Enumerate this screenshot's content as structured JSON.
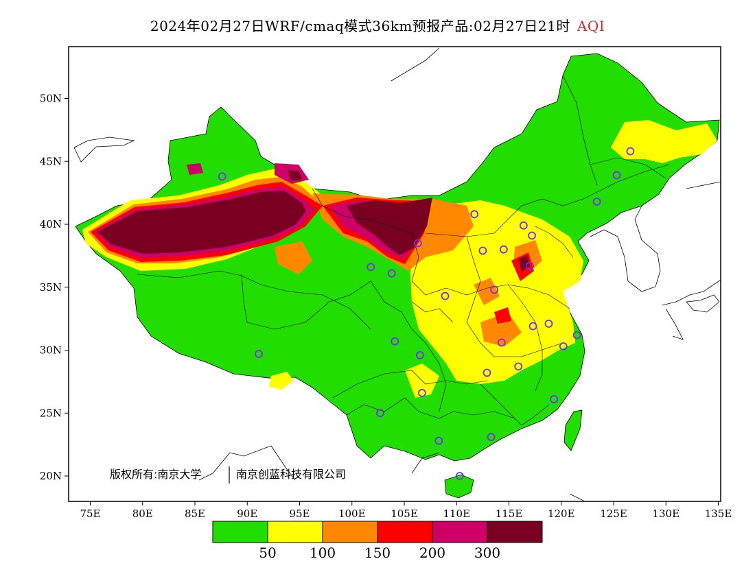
{
  "title": {
    "main": "2024年02月27日WRF/cmaq模式36km预报产品:02月27日21时",
    "variable": "AQI",
    "variable_color": "#d42a2a"
  },
  "axes": {
    "x_ticks": [
      "75E",
      "80E",
      "85E",
      "90E",
      "95E",
      "100E",
      "105E",
      "110E",
      "115E",
      "120E",
      "125E",
      "130E",
      "135E"
    ],
    "y_ticks": [
      "50N",
      "45N",
      "40N",
      "35N",
      "30N",
      "25N",
      "20N"
    ]
  },
  "credit": {
    "left": "版权所有:南京大学",
    "right": "南京创蓝科技有限公司"
  },
  "legend": {
    "colors": [
      "#22dd00",
      "#ffff00",
      "#ff8800",
      "#ff0000",
      "#cc0066",
      "#7a0022"
    ],
    "labels": [
      "50",
      "100",
      "150",
      "200",
      "300"
    ]
  },
  "map": {
    "lon_range": [
      73,
      135
    ],
    "lat_range": [
      18,
      54
    ],
    "monitoring_sites": [
      {
        "lon": 87.6,
        "lat": 43.8
      },
      {
        "lon": 91.1,
        "lat": 29.7
      },
      {
        "lon": 101.8,
        "lat": 36.6
      },
      {
        "lon": 103.8,
        "lat": 36.1
      },
      {
        "lon": 106.3,
        "lat": 38.5
      },
      {
        "lon": 111.7,
        "lat": 40.8
      },
      {
        "lon": 116.4,
        "lat": 39.9
      },
      {
        "lon": 117.2,
        "lat": 39.1
      },
      {
        "lon": 114.5,
        "lat": 38.0
      },
      {
        "lon": 112.5,
        "lat": 37.9
      },
      {
        "lon": 117.0,
        "lat": 36.7
      },
      {
        "lon": 113.6,
        "lat": 34.8
      },
      {
        "lon": 108.9,
        "lat": 34.3
      },
      {
        "lon": 104.1,
        "lat": 30.7
      },
      {
        "lon": 106.5,
        "lat": 29.6
      },
      {
        "lon": 114.3,
        "lat": 30.6
      },
      {
        "lon": 112.9,
        "lat": 28.2
      },
      {
        "lon": 115.9,
        "lat": 28.7
      },
      {
        "lon": 117.3,
        "lat": 31.9
      },
      {
        "lon": 118.8,
        "lat": 32.1
      },
      {
        "lon": 120.2,
        "lat": 30.3
      },
      {
        "lon": 121.5,
        "lat": 31.2
      },
      {
        "lon": 119.3,
        "lat": 26.1
      },
      {
        "lon": 113.3,
        "lat": 23.1
      },
      {
        "lon": 108.3,
        "lat": 22.8
      },
      {
        "lon": 106.7,
        "lat": 26.6
      },
      {
        "lon": 102.7,
        "lat": 25.0
      },
      {
        "lon": 110.3,
        "lat": 20.0
      },
      {
        "lon": 123.4,
        "lat": 41.8
      },
      {
        "lon": 125.3,
        "lat": 43.9
      },
      {
        "lon": 126.6,
        "lat": 45.8
      }
    ]
  }
}
